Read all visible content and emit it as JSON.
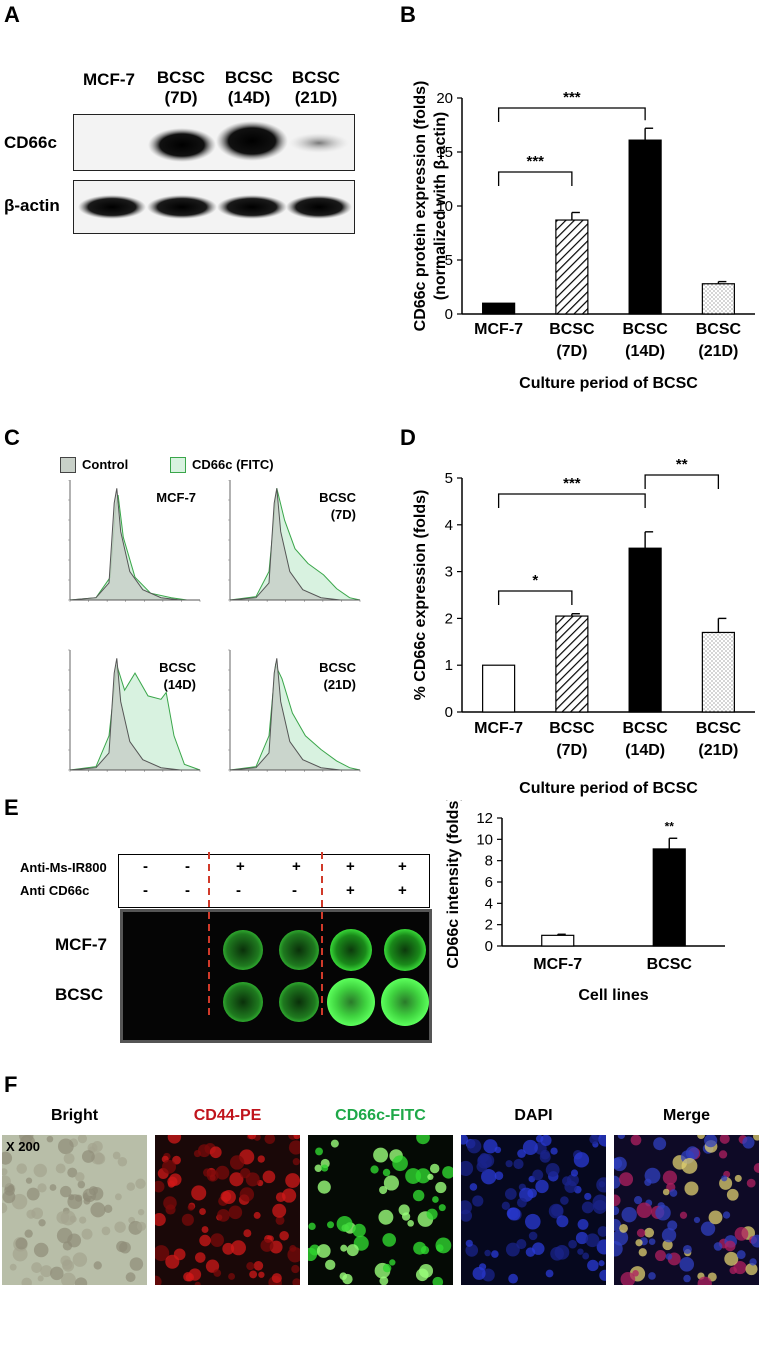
{
  "panels": {
    "a": "A",
    "b": "B",
    "c": "C",
    "d": "D",
    "e": "E",
    "f": "F"
  },
  "panel_a": {
    "columns": [
      "MCF-7",
      "BCSC\n(7D)",
      "BCSC\n(14D)",
      "BCSC\n(21D)"
    ],
    "col_lines": [
      [
        "MCF-7"
      ],
      [
        "BCSC",
        "(7D)"
      ],
      [
        "BCSC",
        "(14D)"
      ],
      [
        "BCSC",
        "(21D)"
      ]
    ],
    "rows": [
      "CD66c",
      "β-actin"
    ]
  },
  "panel_c": {
    "legend": [
      "Control",
      "CD66c (FITC)"
    ],
    "colors": {
      "control": "#c8d0c8",
      "fitc": "#d8f2e0",
      "fitc_line": "#3aa64a"
    },
    "labels": [
      [
        "MCF-7"
      ],
      [
        "BCSC",
        "(7D)"
      ],
      [
        "BCSC",
        "(14D)"
      ],
      [
        "BCSC",
        "(21D)"
      ]
    ]
  },
  "panel_e": {
    "row_headers": [
      "Anti-Ms-IR800",
      "Anti CD66c"
    ],
    "ir800": [
      "-",
      "-",
      "+",
      "+",
      "+",
      "+"
    ],
    "cd66c": [
      "-",
      "-",
      "-",
      "-",
      "+",
      "+"
    ],
    "blot_rows": [
      "MCF-7",
      "BCSC"
    ],
    "colors": {
      "dash": "#d03a2a",
      "spot": "#33cc33"
    }
  },
  "panel_f": {
    "titles": [
      "Bright",
      "CD44-PE",
      "CD66c-FITC",
      "DAPI",
      "Merge"
    ],
    "title_colors": [
      "#000000",
      "#c0141c",
      "#1ea848",
      "#000000",
      "#000000"
    ],
    "magnification": "X 200"
  },
  "chart_data": [
    {
      "type": "bar",
      "panel": "B",
      "categories": [
        "MCF-7",
        "BCSC (7D)",
        "BCSC (14D)",
        "BCSC (21D)"
      ],
      "category_lines": [
        [
          "MCF-7"
        ],
        [
          "BCSC",
          "(7D)"
        ],
        [
          "BCSC",
          "(14D)"
        ],
        [
          "BCSC",
          "(21D)"
        ]
      ],
      "values": [
        1.0,
        8.7,
        16.1,
        2.8
      ],
      "errors": [
        0.0,
        0.7,
        1.1,
        0.2
      ],
      "fills": [
        "solid",
        "hatch",
        "solid",
        "dots"
      ],
      "ylabel": "CD66c protein expression (folds)",
      "ylabel2": "(normalized with β-actin)",
      "xlabel": "Culture period of BCSC",
      "ylim": [
        0,
        20
      ],
      "yticks": [
        "0",
        "5",
        "10",
        "15",
        "20"
      ],
      "significance": [
        {
          "from": 0,
          "to": 1,
          "label": "***"
        },
        {
          "from": 0,
          "to": 2,
          "label": "***"
        }
      ]
    },
    {
      "type": "bar",
      "panel": "D",
      "categories": [
        "MCF-7",
        "BCSC (7D)",
        "BCSC (14D)",
        "BCSC (21D)"
      ],
      "category_lines": [
        [
          "MCF-7"
        ],
        [
          "BCSC",
          "(7D)"
        ],
        [
          "BCSC",
          "(14D)"
        ],
        [
          "BCSC",
          "(21D)"
        ]
      ],
      "values": [
        1.0,
        2.05,
        3.5,
        1.7
      ],
      "errors": [
        0.0,
        0.05,
        0.35,
        0.3
      ],
      "fills": [
        "white",
        "hatch",
        "solid",
        "dots"
      ],
      "ylabel": "% CD66c expression (folds)",
      "xlabel": "Culture period of BCSC",
      "ylim": [
        0,
        5
      ],
      "yticks": [
        "0",
        "1",
        "2",
        "3",
        "4",
        "5"
      ],
      "significance": [
        {
          "from": 0,
          "to": 1,
          "label": "*"
        },
        {
          "from": 0,
          "to": 2,
          "label": "***"
        },
        {
          "from": 2,
          "to": 3,
          "label": "**"
        }
      ]
    },
    {
      "type": "bar",
      "panel": "E",
      "categories": [
        "MCF-7",
        "BCSC"
      ],
      "values": [
        1.0,
        9.1
      ],
      "errors": [
        0.1,
        1.0
      ],
      "fills": [
        "white",
        "solid"
      ],
      "ylabel": "CD66c intensity (folds)",
      "xlabel": "Cell lines",
      "ylim": [
        0,
        12
      ],
      "yticks": [
        "0",
        "2",
        "4",
        "6",
        "8",
        "10",
        "12"
      ],
      "star": {
        "index": 1,
        "label": "**"
      }
    }
  ]
}
